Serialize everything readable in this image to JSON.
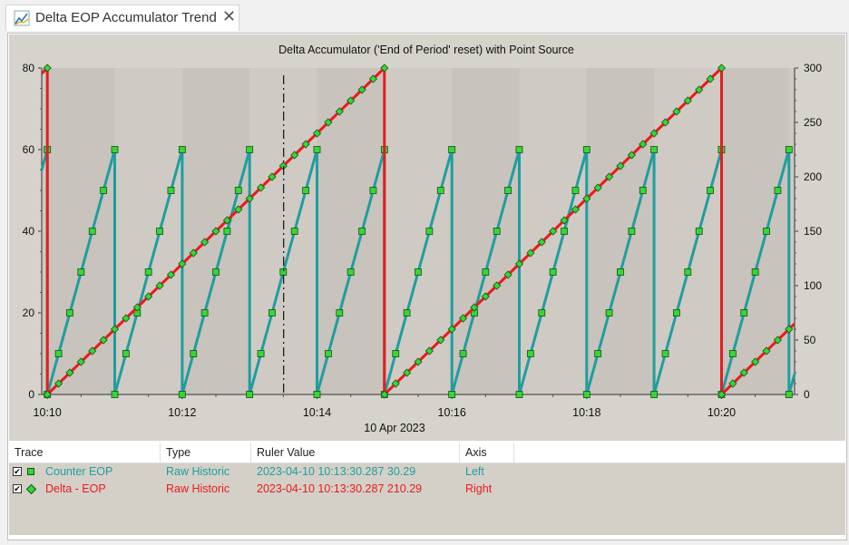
{
  "tab": {
    "title": "Delta EOP Accumulator Trend",
    "close_icon": "close-icon",
    "icon": "trend-chart-icon"
  },
  "colors": {
    "counter": "#1f9e9e",
    "delta": "#e81c1c",
    "marker": "#33d833",
    "plot_bg": "#cfcac4",
    "band": "#c8c3bd"
  },
  "chart_data": {
    "type": "line",
    "title": "Delta Accumulator ('End of Period' reset) with Point Source",
    "xlabel": "10 Apr 2023",
    "x_ticks": [
      "10:10",
      "10:12",
      "10:14",
      "10:16",
      "10:18",
      "10:20"
    ],
    "x_range": [
      "10:09:55",
      "10:21:05"
    ],
    "y_left": {
      "range": [
        0,
        80
      ],
      "ticks": [
        "0",
        "20",
        "40",
        "60",
        "80"
      ]
    },
    "y_right": {
      "range": [
        0,
        300
      ],
      "ticks": [
        "0",
        "50",
        "100",
        "150",
        "200",
        "250",
        "300"
      ]
    },
    "ruler_time": "10:13:30.287",
    "series": [
      {
        "name": "Counter EOP",
        "axis": "left",
        "reset_period_minutes": 1,
        "step_seconds": 10,
        "step_value": 10,
        "max": 60
      },
      {
        "name": "Delta - EOP",
        "axis": "right",
        "reset_period_minutes": 5,
        "step_seconds": 10,
        "step_value": 10,
        "max": 300
      }
    ]
  },
  "legend_table": {
    "headers": [
      "Trace",
      "Type",
      "Ruler Value",
      "Axis"
    ],
    "rows": [
      {
        "trace": "Counter EOP",
        "type": "Raw Historic",
        "ruler": "2023-04-10 10:13:30.287  30.29",
        "axis": "Left",
        "checked": "✔"
      },
      {
        "trace": "Delta - EOP",
        "type": "Raw Historic",
        "ruler": "2023-04-10 10:13:30.287  210.29",
        "axis": "Right",
        "checked": "✔"
      }
    ]
  }
}
